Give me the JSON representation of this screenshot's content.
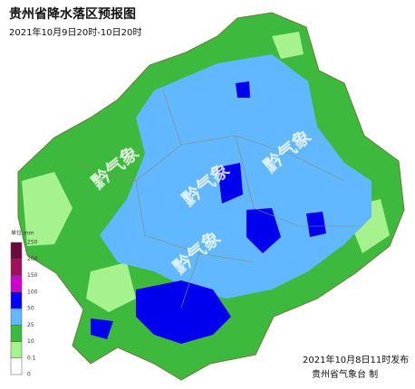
{
  "title": "贵州省降水落区预报图",
  "subtitle": "2021年10月9日20时-10日20时",
  "watermark": "黔气象",
  "legend": {
    "unit": "单位 mm",
    "levels": [
      0,
      0.1,
      10,
      25,
      50,
      100,
      150,
      200,
      250
    ],
    "colors": [
      "#ffffff",
      "#a6f28f",
      "#3dba3d",
      "#61b8ff",
      "#0000ff",
      "#d000d0",
      "#a0105a",
      "#6b0a3e"
    ]
  },
  "footer": {
    "issued": "2021年10月8日11时发布",
    "agency": "贵州省气象台 制"
  }
}
